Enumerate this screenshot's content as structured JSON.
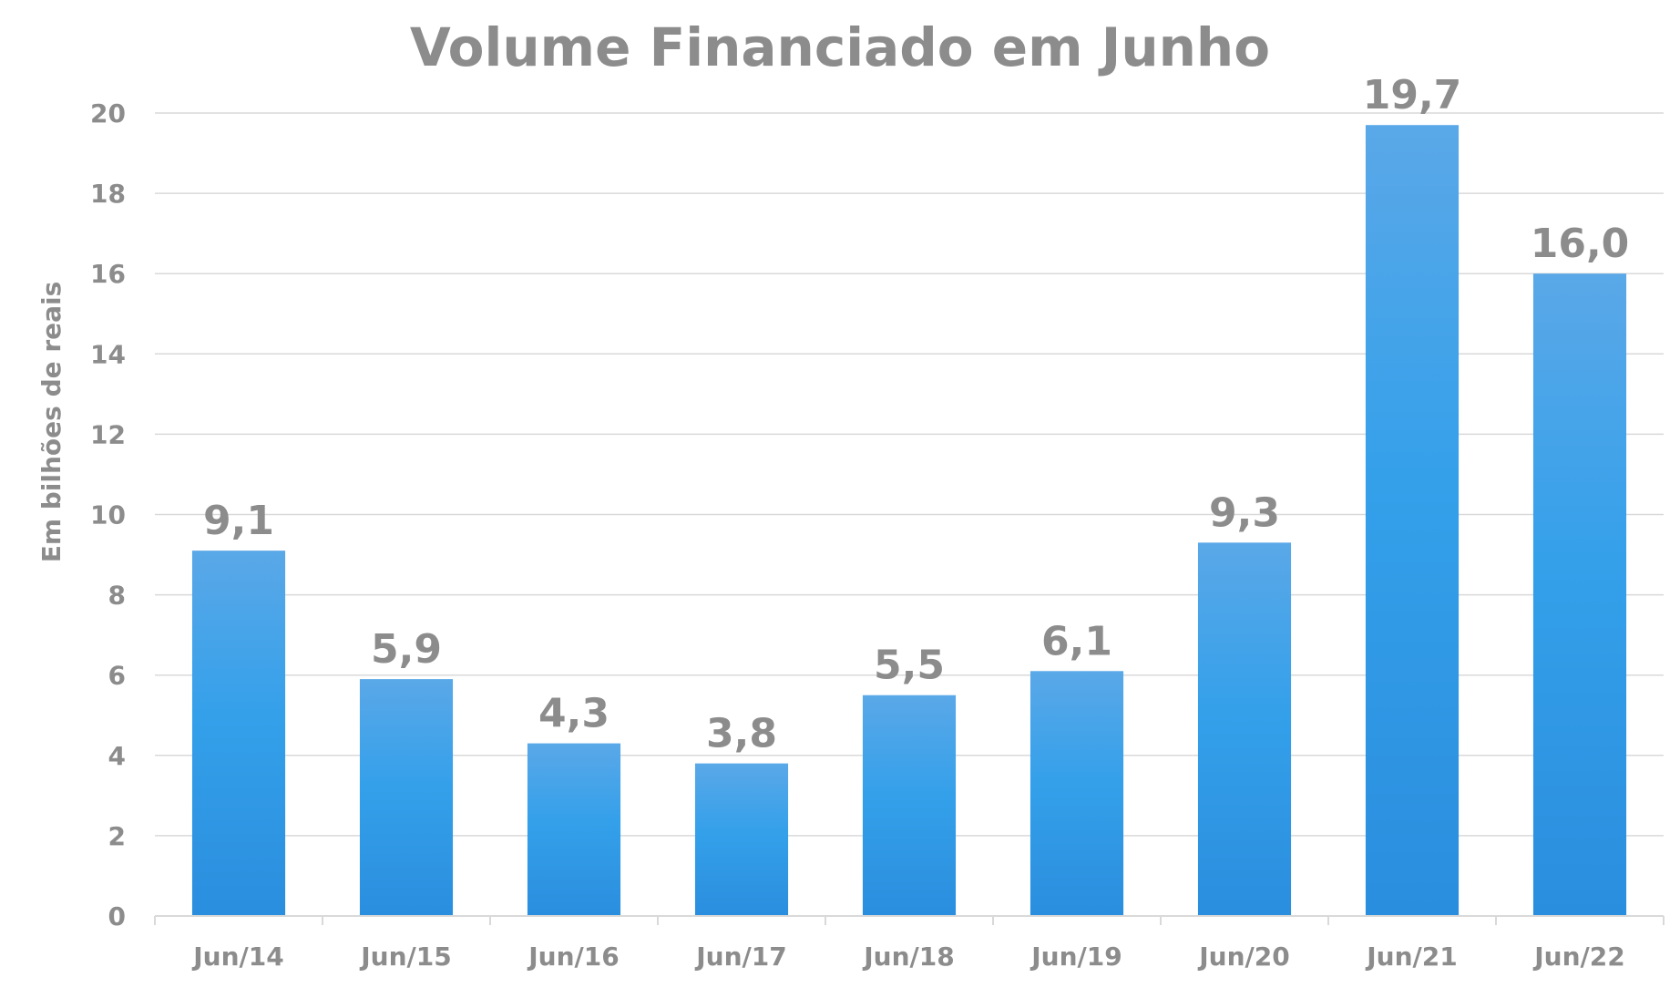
{
  "chart_data": {
    "type": "bar",
    "title": "Volume Financiado em Junho",
    "xlabel": "",
    "ylabel": "Em bilhões de reais",
    "categories": [
      "Jun/14",
      "Jun/15",
      "Jun/16",
      "Jun/17",
      "Jun/18",
      "Jun/19",
      "Jun/20",
      "Jun/21",
      "Jun/22"
    ],
    "values": [
      9.1,
      5.9,
      4.3,
      3.8,
      5.5,
      6.1,
      9.3,
      19.7,
      16.0
    ],
    "data_labels": [
      "9,1",
      "5,9",
      "4,3",
      "3,8",
      "5,5",
      "6,1",
      "9,3",
      "19,7",
      "16,0"
    ],
    "ylim": [
      0,
      20
    ],
    "yticks": [
      0,
      2,
      4,
      6,
      8,
      10,
      12,
      14,
      16,
      18,
      20
    ],
    "grid": true,
    "legend": "none",
    "colors": {
      "bar_top": "#5aa8e8",
      "bar_mid": "#34a0ea",
      "bar_bottom": "#2a8ede",
      "text": "#8c8c8c",
      "grid": "#d9d9d9"
    }
  }
}
